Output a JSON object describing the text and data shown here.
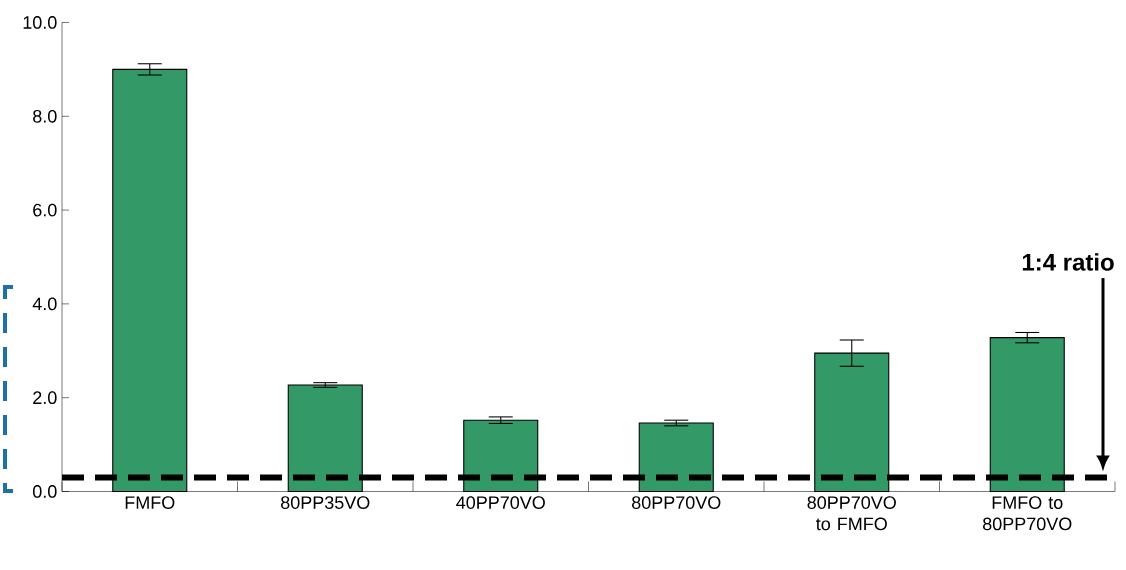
{
  "chart_data": {
    "type": "bar",
    "categories": [
      "FMFO",
      "80PP35VO",
      "40PP70VO",
      "80PP70VO",
      "80PP70VO to FMFO",
      "FMFO to 80PP70VO"
    ],
    "values": [
      9.0,
      2.27,
      1.52,
      1.46,
      2.95,
      3.28
    ],
    "errors": [
      0.12,
      0.05,
      0.07,
      0.06,
      0.28,
      0.11
    ],
    "color": "#339966",
    "ylim": [
      0,
      10
    ],
    "yticks": [
      {
        "value": 0,
        "label": "0.0"
      },
      {
        "value": 2,
        "label": "2.0"
      },
      {
        "value": 4,
        "label": "4.0"
      },
      {
        "value": 6,
        "label": "6.0"
      },
      {
        "value": 8,
        "label": "8.0"
      },
      {
        "value": 10,
        "label": "10.0"
      }
    ],
    "ref_lines": [
      {
        "axis": "y",
        "value": 0.3,
        "color": "#000000",
        "line_style": "dashed"
      }
    ],
    "annotations": [
      "1:4 ratio"
    ]
  }
}
